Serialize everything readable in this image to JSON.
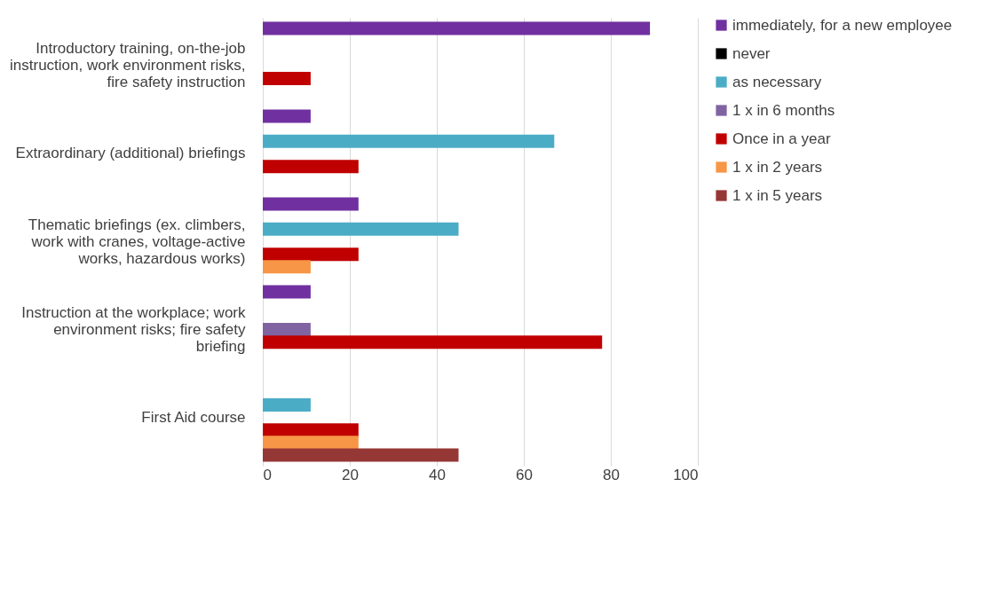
{
  "chart_data": {
    "type": "bar",
    "orientation": "horizontal",
    "categories": [
      "Introductory training, on-the-job instruction, work environment risks, fire safety instruction",
      "Extraordinary (additional) briefings",
      "Thematic briefings (ex. climbers, work with cranes, voltage-active works, hazardous works)",
      "Instruction at the workplace; work environment risks; fire safety briefing",
      "First Aid course"
    ],
    "series": [
      {
        "name": "immediately, for a new employee",
        "color": "#7030a0",
        "values": [
          89,
          11,
          22,
          11,
          null
        ]
      },
      {
        "name": "never",
        "color": "#000000",
        "values": [
          null,
          null,
          null,
          null,
          null
        ]
      },
      {
        "name": "as necessary",
        "color": "#4bacc6",
        "values": [
          null,
          67,
          45,
          null,
          11
        ]
      },
      {
        "name": "1 x in 6 months",
        "color": "#8064a2",
        "values": [
          null,
          null,
          null,
          11,
          null
        ]
      },
      {
        "name": "Once in a year",
        "color": "#c00000",
        "values": [
          11,
          22,
          22,
          78,
          22
        ]
      },
      {
        "name": "1 x in 2 years",
        "color": "#f79646",
        "values": [
          null,
          null,
          11,
          null,
          22
        ]
      },
      {
        "name": "1 x in 5 years",
        "color": "#953735",
        "values": [
          null,
          null,
          null,
          null,
          45
        ]
      }
    ],
    "xlim": [
      0,
      100
    ],
    "xticks": [
      0,
      20,
      40,
      60,
      80,
      100
    ],
    "grid": "x",
    "legend": "right"
  }
}
